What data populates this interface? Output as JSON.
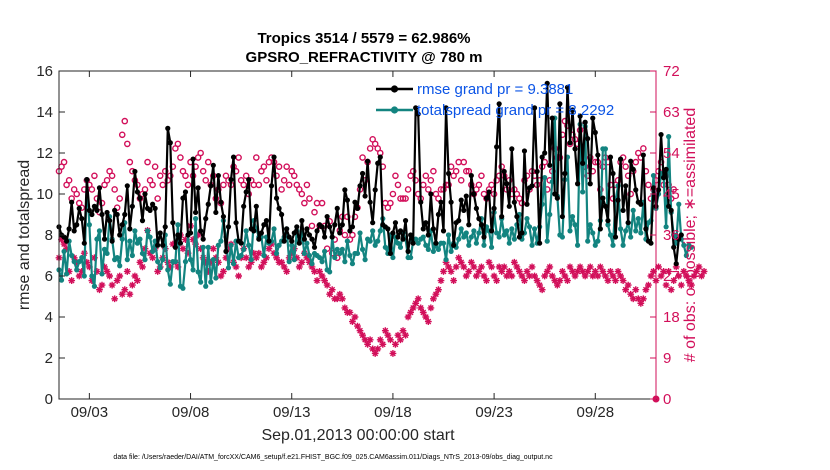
{
  "chart_data": {
    "type": "line",
    "title_line1": "Tropics 3514 / 5579 = 62.986%",
    "title_line2": "GPSRO_REFRACTIVITY @ 780 m",
    "xlabel": "Sep.01,2013 00:00:00 start",
    "ylabel_left": "rmse and totalspread",
    "ylabel_right": "# of obs: o=possible; ∗=assimilated",
    "xlim": [
      1.5,
      31
    ],
    "ylim_left": [
      0,
      16
    ],
    "ylim_right": [
      0,
      72
    ],
    "xticks": [
      3,
      8,
      13,
      18,
      23,
      28
    ],
    "xtick_labels": [
      "09/03",
      "09/08",
      "09/13",
      "09/18",
      "09/23",
      "09/28"
    ],
    "yticks_left": [
      0,
      2,
      4,
      6,
      8,
      10,
      12,
      14,
      16
    ],
    "yticks_right": [
      0,
      9,
      18,
      27,
      36,
      45,
      54,
      63,
      72
    ],
    "colors": {
      "rmse": "#000000",
      "spread": "#138480",
      "obs": "#d20f5a",
      "legend_text": "#0b54e6"
    },
    "legend": [
      {
        "name": "rmse grand pr = 9.3881"
      },
      {
        "name": "totalspread grand pr = 8.2292"
      }
    ],
    "footer": "data file: /Users/raeder/DAI/ATM_forcXX/CAM6_setup/f.e21.FHIST_BGC.f09_025.CAM6assim.011/Diags_NTrS_2013-09/obs_diag_output.nc",
    "time_step_days": 0.125,
    "time_start_day": 1.5,
    "rmse": [
      8.4,
      8.0,
      7.9,
      7.7,
      8.3,
      9.6,
      8.2,
      8.5,
      9.3,
      8.8,
      7.6,
      10.7,
      9.2,
      9.0,
      9.4,
      9.2,
      10.3,
      9.0,
      7.8,
      9.1,
      8.7,
      7.7,
      9.2,
      9.0,
      8.0,
      8.5,
      9.0,
      10.4,
      8.3,
      9.4,
      11.1,
      10.1,
      9.8,
      8.7,
      10.0,
      9.3,
      9.2,
      9.5,
      9.3,
      7.5,
      8.1,
      7.5,
      8.4,
      13.2,
      12.5,
      8.6,
      7.4,
      8.0,
      7.6,
      9.8,
      10.1,
      8.0,
      8.1,
      11.7,
      9.1,
      10.3,
      8.2,
      7.8,
      8.8,
      9.5,
      10.4,
      11.4,
      9.1,
      10.9,
      9.6,
      8.9,
      7.2,
      8.4,
      10.7,
      11.8,
      8.6,
      7.7,
      7.6,
      9.4,
      10.1,
      10.7,
      8.3,
      8.2,
      9.4,
      7.8,
      8.1,
      8.5,
      8.7,
      7.7,
      10.4,
      11.8,
      9.8,
      9.3,
      9.0,
      7.7,
      8.3,
      7.9,
      7.7,
      8.1,
      8.4,
      7.6,
      8.7,
      7.8,
      8.3,
      8.0,
      7.8,
      7.4,
      8.2,
      8.5,
      8.4,
      7.9,
      8.9,
      8.4,
      7.9,
      8.5,
      9.3,
      8.1,
      8.5,
      10.2,
      9.7,
      8.2,
      8.4,
      9.6,
      9.3,
      10.4,
      11.0,
      9.9,
      11.6,
      9.6,
      8.6,
      10.2,
      11.5,
      11.8,
      8.5,
      8.4,
      8.3,
      7.1,
      8.1,
      8.6,
      7.9,
      8.2,
      7.8,
      8.7,
      7.2,
      8.0,
      7.6,
      14.2,
      13.9,
      9.6,
      8.3,
      8.6,
      8.0,
      10.0,
      8.3,
      7.6,
      9.0,
      9.6,
      8.2,
      14.2,
      11.0,
      9.6,
      7.5,
      8.6,
      8.7,
      9.7,
      9.2,
      9.9,
      8.5,
      10.9,
      10.0,
      9.3,
      8.8,
      8.5,
      7.9,
      9.8,
      10.1,
      8.2,
      9.3,
      12.3,
      14.4,
      8.9,
      11.1,
      10.5,
      9.4,
      12.2,
      9.6,
      8.9,
      7.9,
      8.1,
      12.1,
      9.5,
      10.3,
      10.4,
      14.2,
      11.1,
      7.6,
      11.8,
      12.0,
      15.4,
      11.4,
      13.7,
      10.0,
      9.8,
      14.4,
      8.9,
      11.0,
      15.2,
      12.5,
      14.1,
      12.2,
      10.5,
      13.8,
      11.5,
      13.5,
      12.7,
      10.5,
      13.7,
      13.0,
      11.9,
      8.3,
      9.8,
      9.4,
      8.7,
      11.8,
      11.0,
      7.9,
      9.7,
      11.7,
      9.2,
      10.4,
      8.6,
      11.6,
      11.2,
      10.2,
      9.6,
      9.5,
      11.9,
      8.3,
      7.7,
      7.6,
      10.3,
      9.4,
      10.2,
      12.9,
      10.8,
      11.2,
      9.4,
      9.2,
      7.4,
      6.6,
      7.8,
      8.0
    ],
    "spread": [
      6.3,
      5.8,
      7.2,
      6.1,
      7.7,
      7.0,
      6.7,
      6.3,
      6.7,
      6.9,
      6.0,
      10.7,
      8.5,
      6.0,
      5.5,
      7.8,
      8.2,
      6.1,
      7.3,
      7.1,
      8.9,
      7.8,
      6.8,
      6.9,
      6.5,
      7.8,
      8.6,
      6.8,
      7.7,
      7.0,
      8.2,
      7.6,
      7.8,
      7.1,
      6.8,
      8.2,
      7.9,
      7.2,
      7.7,
      6.7,
      6.4,
      6.8,
      8.0,
      6.3,
      5.6,
      6.7,
      6.7,
      8.5,
      5.5,
      5.4,
      6.7,
      8.0,
      6.8,
      6.3,
      8.8,
      6.2,
      5.7,
      7.4,
      5.5,
      7.4,
      5.7,
      6.8,
      5.9,
      7.5,
      7.7,
      8.7,
      7.9,
      6.4,
      7.5,
      6.6,
      7.7,
      6.9,
      7.0,
      7.3,
      8.2,
      7.5,
      6.8,
      8.7,
      8.3,
      7.9,
      7.9,
      7.0,
      7.9,
      7.6,
      7.7,
      8.3,
      7.1,
      7.5,
      7.7,
      7.9,
      8.3,
      6.7,
      7.5,
      6.8,
      8.2,
      7.7,
      8.1,
      7.1,
      7.6,
      7.0,
      6.6,
      7.1,
      7.0,
      6.9,
      6.7,
      7.2,
      6.3,
      6.2,
      7.9,
      6.9,
      7.3,
      7.1,
      7.3,
      6.7,
      7.7,
      7.0,
      6.6,
      7.1,
      7.1,
      8.1,
      7.3,
      6.8,
      7.8,
      7.7,
      8.2,
      7.5,
      7.7,
      8.2,
      8.8,
      7.4,
      7.1,
      8.0,
      6.9,
      7.9,
      7.6,
      7.4,
      8.1,
      7.8,
      6.9,
      6.9,
      7.7,
      7.8,
      7.6,
      7.8,
      7.9,
      7.5,
      7.3,
      8.2,
      7.2,
      7.5,
      7.3,
      7.6,
      7.6,
      6.8,
      8.0,
      7.2,
      7.6,
      7.4,
      7.8,
      8.3,
      7.9,
      8.1,
      7.5,
      7.9,
      8.2,
      7.6,
      8.1,
      8.8,
      7.5,
      8.4,
      8.2,
      7.4,
      9.1,
      8.1,
      7.9,
      8.8,
      8.0,
      8.2,
      7.6,
      8.3,
      7.8,
      8.5,
      9.0,
      7.8,
      8.1,
      8.8,
      8.4,
      7.5,
      8.3,
      7.6,
      8.4,
      9.5,
      10.8,
      7.7,
      9.0,
      10.6,
      13.7,
      9.9,
      8.0,
      7.9,
      10.7,
      11.8,
      8.2,
      8.9,
      8.5,
      7.5,
      13.4,
      10.1,
      13.3,
      7.7,
      8.5,
      8.1,
      7.5,
      7.7,
      8.7,
      12.2,
      12.2,
      8.5,
      8.0,
      7.5,
      9.7,
      10.4,
      8.3,
      7.5,
      8.2,
      8.6,
      7.9,
      9.2,
      8.2,
      8.8,
      8.1,
      9.6,
      7.8,
      8.6,
      8.7,
      10.9,
      9.3,
      10.0,
      11.0,
      10.9,
      8.4,
      12.8,
      9.1,
      8.0,
      7.6,
      9.5,
      7.8,
      7.5,
      7.0,
      7.5,
      7.4
    ],
    "obs_possible": [
      50,
      51,
      52,
      47,
      48,
      44,
      46,
      45,
      43,
      42,
      46,
      48,
      47,
      46,
      49,
      44,
      41,
      43,
      47,
      48,
      50,
      49,
      46,
      42,
      44,
      58,
      61,
      56,
      52,
      50,
      48,
      47,
      44,
      45,
      46,
      52,
      48,
      47,
      51,
      44,
      49,
      47,
      50,
      48,
      49,
      51,
      55,
      56,
      53,
      50,
      49,
      47,
      52,
      49,
      51,
      53,
      54,
      50,
      48,
      52,
      47,
      49,
      44,
      46,
      43,
      47,
      49,
      48,
      47,
      51,
      50,
      53,
      48,
      47,
      49,
      45,
      48,
      47,
      53,
      47,
      50,
      51,
      48,
      52,
      53,
      52,
      49,
      51,
      46,
      48,
      51,
      47,
      50,
      49,
      47,
      46,
      45,
      43,
      47,
      44,
      38,
      41,
      43,
      38,
      43,
      38,
      33,
      39,
      32,
      35,
      31,
      37,
      40,
      36,
      40,
      35,
      36,
      40,
      42,
      46,
      53,
      48,
      52,
      55,
      57,
      56,
      55,
      54,
      51,
      43,
      42,
      43,
      45,
      49,
      47,
      44,
      44,
      44,
      46,
      49,
      50,
      48,
      45,
      44,
      47,
      49,
      46,
      48,
      50,
      45,
      44,
      46,
      46,
      47,
      47,
      51,
      49,
      50,
      52,
      48,
      52,
      50,
      50,
      47,
      45,
      46,
      47,
      49,
      45,
      44,
      46,
      47,
      45,
      48,
      49,
      51,
      49,
      46,
      48,
      45,
      46,
      45,
      44,
      43,
      48,
      49,
      46,
      50,
      49,
      47,
      48,
      51,
      52,
      46,
      48,
      50,
      55,
      53,
      53,
      58,
      61,
      60,
      56,
      58,
      57,
      56,
      59,
      60,
      51,
      49,
      53,
      50,
      52,
      52,
      46,
      51,
      53,
      52,
      47,
      44,
      47,
      48,
      52,
      53,
      51,
      49,
      45,
      50,
      52,
      54,
      53,
      55,
      50,
      47,
      44,
      46,
      48,
      50,
      52,
      47,
      49,
      47,
      44,
      46
    ],
    "obs_assim": [
      31,
      35,
      34,
      33,
      28,
      26,
      31,
      30,
      27,
      28,
      32,
      30,
      29,
      26,
      31,
      28,
      24,
      25,
      29,
      28,
      27,
      25,
      22,
      26,
      27,
      23,
      24,
      28,
      23,
      25,
      27,
      26,
      30,
      29,
      33,
      37,
      32,
      31,
      33,
      28,
      29,
      31,
      33,
      30,
      29,
      34,
      30,
      29,
      36,
      33,
      35,
      32,
      38,
      35,
      34,
      36,
      33,
      31,
      30,
      28,
      30,
      33,
      31,
      30,
      27,
      28,
      31,
      33,
      34,
      30,
      29,
      27,
      31,
      33,
      31,
      29,
      30,
      32,
      31,
      32,
      29,
      30,
      31,
      33,
      34,
      32,
      31,
      30,
      30,
      29,
      28,
      31,
      32,
      33,
      31,
      29,
      30,
      32,
      31,
      30,
      29,
      28,
      26,
      28,
      27,
      26,
      25,
      23,
      24,
      22,
      22,
      23,
      22,
      20,
      19,
      19,
      17,
      18,
      16,
      15,
      14,
      13,
      12,
      13,
      11,
      10,
      11,
      13,
      12,
      15,
      14,
      13,
      10,
      12,
      14,
      13,
      15,
      14,
      18,
      19,
      20,
      21,
      22,
      20,
      19,
      18,
      17,
      20,
      22,
      23,
      24,
      26,
      28,
      30,
      29,
      28,
      26,
      29,
      31,
      30,
      29,
      27,
      28,
      30,
      29,
      27,
      28,
      29,
      27,
      26,
      30,
      29,
      27,
      26,
      29,
      28,
      29,
      27,
      28,
      27,
      30,
      29,
      28,
      27,
      26,
      28,
      27,
      29,
      27,
      26,
      25,
      24,
      27,
      28,
      29,
      27,
      26,
      25,
      26,
      28,
      27,
      26,
      29,
      28,
      27,
      28,
      29,
      28,
      27,
      28,
      29,
      27,
      28,
      27,
      29,
      28,
      27,
      26,
      28,
      27,
      26,
      28,
      27,
      26,
      24,
      25,
      23,
      22,
      24,
      22,
      21,
      22,
      24,
      25,
      27,
      28,
      26,
      29,
      27,
      28,
      25,
      28,
      24,
      26,
      29,
      27,
      25,
      28,
      27,
      26,
      25,
      27,
      28,
      29,
      27,
      28
    ]
  }
}
